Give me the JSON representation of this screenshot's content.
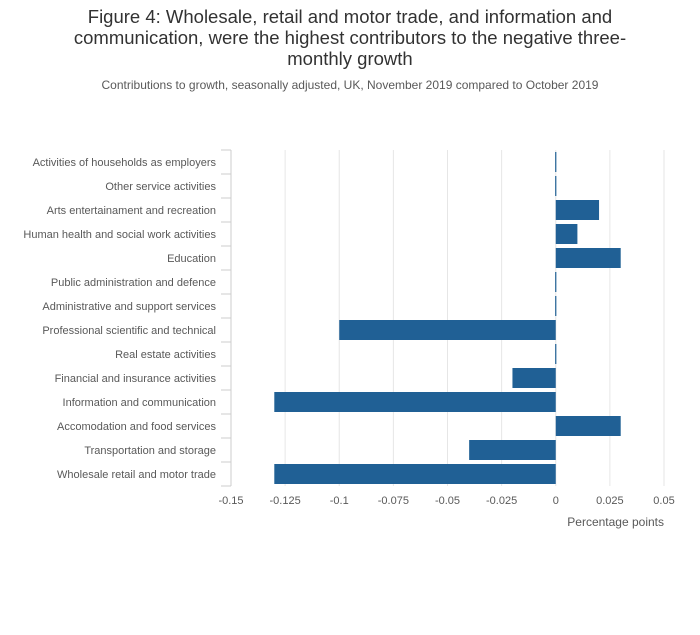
{
  "title": "Figure 4: Wholesale, retail and motor trade, and information and communication, were the highest contributors to the negative three-monthly growth",
  "title_lines": [
    "Figure 4: Wholesale, retail and motor trade, and information and",
    "communication, were the highest contributors to the negative three-",
    "monthly growth"
  ],
  "subtitle": "Contributions to growth, seasonally adjusted, UK, November 2019 compared to October 2019",
  "colors": {
    "bar": "#206095",
    "grid": "#e6e6e6",
    "text": "#595959"
  },
  "chart_data": {
    "type": "bar",
    "orientation": "horizontal",
    "categories": [
      "Activities of households as employers",
      "Other service activities",
      "Arts entertainament and recreation",
      "Human health and social work activities",
      "Education",
      "Public administration and defence",
      "Administrative and support services",
      "Professional scientific and technical",
      "Real estate activities",
      "Financial and insurance activities",
      "Information and communication",
      "Accomodation and food services",
      "Transportation and storage",
      "Wholesale retail and motor trade"
    ],
    "values": [
      0,
      0,
      0.02,
      0.01,
      0.03,
      0,
      0,
      -0.1,
      0,
      -0.02,
      -0.13,
      0.03,
      -0.04,
      -0.13
    ],
    "xlabel": "Percentage points",
    "ylabel": "",
    "xlim": [
      -0.15,
      0.05
    ],
    "xticks": [
      -0.15,
      -0.125,
      -0.1,
      -0.075,
      -0.05,
      -0.025,
      0,
      0.025,
      0.05
    ],
    "xtick_labels": [
      "-0.15",
      "-0.125",
      "-0.1",
      "-0.075",
      "-0.05",
      "-0.025",
      "0",
      "0.025",
      "0.05"
    ],
    "grid": true,
    "legend": "none"
  }
}
